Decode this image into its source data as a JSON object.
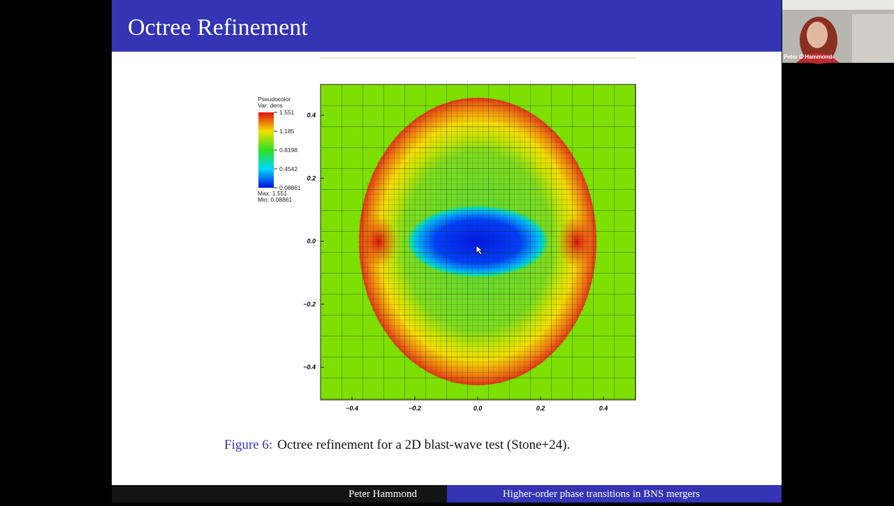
{
  "slide": {
    "title": "Octree Refinement",
    "figure": {
      "legend": {
        "title": "Pseudocolor",
        "variable": "Var: dens",
        "levels": [
          "1.551",
          "1.185",
          "0.8198",
          "0.4542",
          "0.08861"
        ],
        "max": "Max: 1.551",
        "min": "Min: 0.08861"
      },
      "xticks": [
        "−0.4",
        "−0.2",
        "0.0",
        "0.2",
        "0.4"
      ],
      "yticks": [
        "0.4",
        "0.2",
        "0.0",
        "−0.2",
        "−0.4"
      ]
    },
    "caption": {
      "label": "Figure 6:",
      "text": "Octree refinement for a 2D blast-wave test (Stone+24)."
    },
    "footer": {
      "author": "Peter Hammond",
      "talk": "Higher-order phase transitions in BNS mergers"
    }
  },
  "webcam": {
    "name": "Peter C Hammond"
  }
}
